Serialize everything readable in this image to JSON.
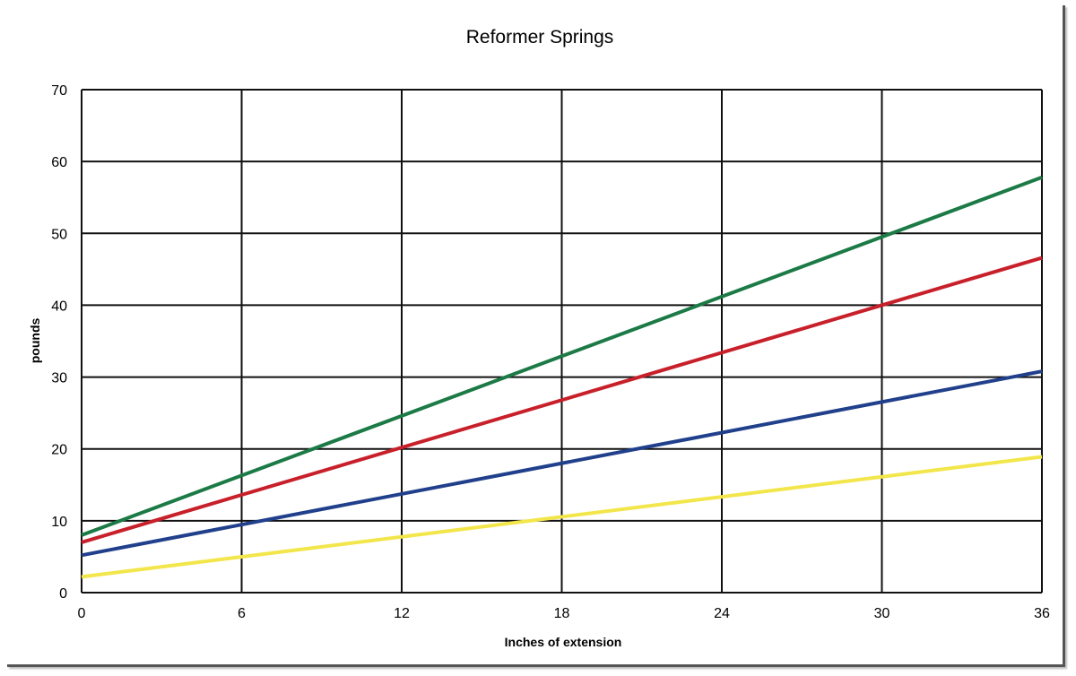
{
  "chart_data": {
    "type": "line",
    "title": "Reformer Springs",
    "xlabel": "Inches of extension",
    "ylabel": "pounds",
    "xlim": [
      0,
      36
    ],
    "ylim": [
      0,
      70
    ],
    "grid": true,
    "x_ticks": [
      "0",
      "6",
      "12",
      "18",
      "24",
      "30",
      "36"
    ],
    "y_ticks": [
      "0",
      "10",
      "20",
      "30",
      "40",
      "50",
      "60",
      "70"
    ],
    "x": [
      0,
      36
    ],
    "series": [
      {
        "name": "green",
        "color": "#1b7a45",
        "values": [
          8,
          57.8
        ]
      },
      {
        "name": "red",
        "color": "#c8202a",
        "values": [
          7,
          46.6
        ]
      },
      {
        "name": "blue",
        "color": "#21408c",
        "values": [
          5.2,
          30.8
        ]
      },
      {
        "name": "yellow",
        "color": "#f2e64a",
        "values": [
          2.2,
          18.9
        ]
      }
    ]
  }
}
